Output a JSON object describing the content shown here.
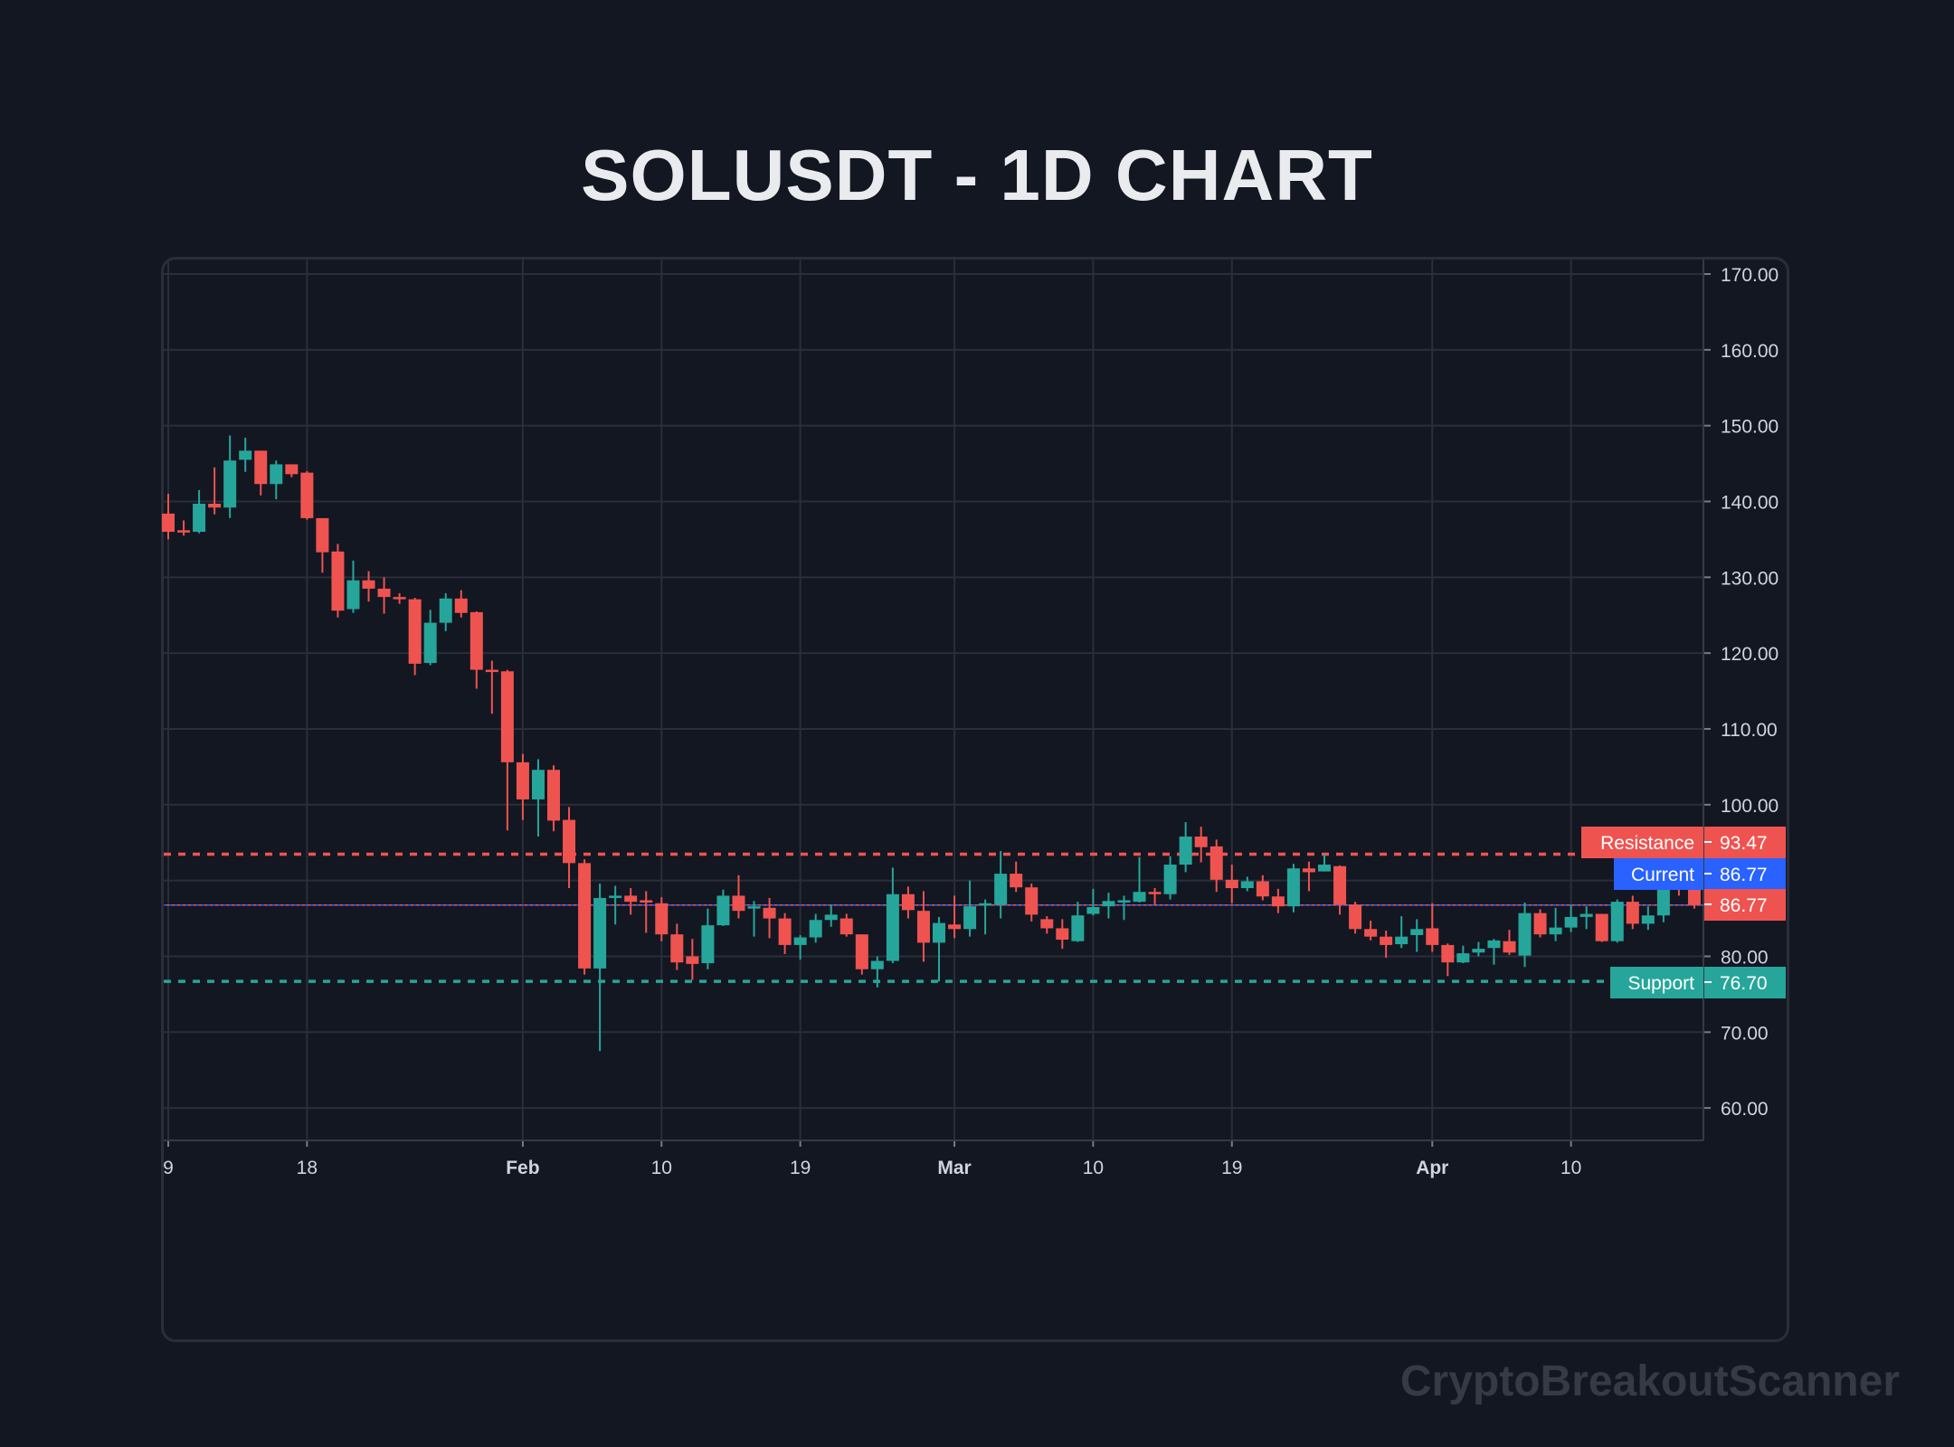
{
  "title": "SOLUSDT - 1D CHART",
  "watermark": "CryptoBreakoutScanner",
  "colors": {
    "background": "#131722",
    "grid": "#2a2e39",
    "up": "#26a69a",
    "down": "#ef5350",
    "current": "#2962ff",
    "text": "#d1d4dc"
  },
  "chart_data": {
    "type": "candlestick",
    "title": "SOLUSDT - 1D CHART",
    "ylim": [
      55.7,
      172.1
    ],
    "grid": true,
    "y_ticks": [
      "60.00",
      "70.00",
      "80.00",
      "90.00",
      "100.00",
      "110.00",
      "120.00",
      "130.00",
      "140.00",
      "150.00",
      "160.00",
      "170.00"
    ],
    "x_ticks": [
      {
        "label": "9",
        "date": "Jan 9",
        "bold": false
      },
      {
        "label": "18",
        "date": "Jan 18",
        "bold": false
      },
      {
        "label": "Feb",
        "date": "Feb 1",
        "bold": true
      },
      {
        "label": "10",
        "date": "Feb 10",
        "bold": false
      },
      {
        "label": "19",
        "date": "Feb 19",
        "bold": false
      },
      {
        "label": "Mar",
        "date": "Mar 1",
        "bold": true
      },
      {
        "label": "10",
        "date": "Mar 10",
        "bold": false
      },
      {
        "label": "19",
        "date": "Mar 19",
        "bold": false
      },
      {
        "label": "Apr",
        "date": "Apr 1",
        "bold": true
      },
      {
        "label": "10",
        "date": "Apr 10",
        "bold": false
      }
    ],
    "levels": {
      "resistance": {
        "label": "Resistance",
        "value": 93.47,
        "value_text": "93.47"
      },
      "current": {
        "label": "Current",
        "value": 86.77,
        "value_text": "86.77"
      },
      "last_price": {
        "value": 86.77,
        "value_text": "86.77"
      },
      "support": {
        "label": "Support",
        "value": 76.7,
        "value_text": "76.70"
      }
    },
    "candles_format": [
      "date",
      "open",
      "high",
      "low",
      "close"
    ],
    "candles": [
      [
        "Jan 9",
        138.4,
        141,
        135,
        136.0
      ],
      [
        "Jan 10",
        136.2,
        137.5,
        135.5,
        136.0
      ],
      [
        "Jan 11",
        136,
        141.5,
        135.8,
        139.7
      ],
      [
        "Jan 12",
        139.7,
        144.5,
        138.3,
        139.2
      ],
      [
        "Jan 13",
        139.2,
        148.7,
        137.8,
        145.4
      ],
      [
        "Jan 14",
        145.5,
        148.4,
        143.9,
        146.7
      ],
      [
        "Jan 15",
        146.7,
        146.7,
        140.8,
        142.3
      ],
      [
        "Jan 16",
        142.3,
        145.4,
        140.3,
        144.9
      ],
      [
        "Jan 17",
        144.9,
        144.9,
        143.2,
        143.6
      ],
      [
        "Jan 18",
        143.8,
        144,
        137.6,
        137.8
      ],
      [
        "Jan 19",
        137.8,
        137.8,
        130.6,
        133.3
      ],
      [
        "Jan 20",
        133.4,
        134.4,
        124.7,
        125.6
      ],
      [
        "Jan 21",
        125.8,
        132.2,
        125.3,
        129.6
      ],
      [
        "Jan 22",
        129.6,
        130.8,
        126.8,
        128.5
      ],
      [
        "Jan 23",
        128.5,
        130,
        125.2,
        127.4
      ],
      [
        "Jan 24",
        127.4,
        127.9,
        126.5,
        127.1
      ],
      [
        "Jan 25",
        127.1,
        127.3,
        117.1,
        118.6
      ],
      [
        "Jan 26",
        118.7,
        125.7,
        118.4,
        124
      ],
      [
        "Jan 27",
        124,
        127.9,
        122.9,
        127.2
      ],
      [
        "Jan 28",
        127.2,
        128.3,
        124.7,
        125.3
      ],
      [
        "Jan 29",
        125.4,
        125.5,
        115.3,
        117.8
      ],
      [
        "Jan 30",
        117.8,
        119,
        112,
        117.6
      ],
      [
        "Jan 31",
        117.6,
        117.8,
        96.6,
        105.6
      ],
      [
        "Feb 1",
        105.6,
        106.7,
        98,
        100.7
      ],
      [
        "Feb 2",
        100.7,
        106,
        95.8,
        104.6
      ],
      [
        "Feb 3",
        104.6,
        105.2,
        96.5,
        97.9
      ],
      [
        "Feb 4",
        98,
        99.7,
        89,
        92.3
      ],
      [
        "Feb 5",
        92.3,
        92.8,
        77.6,
        78.4
      ],
      [
        "Feb 6",
        78.4,
        89.6,
        67.5,
        87.7
      ],
      [
        "Feb 7",
        87.7,
        89.3,
        84.2,
        88.0
      ],
      [
        "Feb 8",
        88.0,
        89,
        85.5,
        87.2
      ],
      [
        "Feb 9",
        87.4,
        88.6,
        83.1,
        87.1
      ],
      [
        "Feb 10",
        87,
        87.8,
        82,
        82.9
      ],
      [
        "Feb 11",
        82.9,
        84.3,
        78.2,
        79.2
      ],
      [
        "Feb 12",
        80,
        82.3,
        76.9,
        79
      ],
      [
        "Feb 13",
        79.1,
        86.3,
        78.3,
        84.1
      ],
      [
        "Feb 14",
        84.1,
        88.8,
        84,
        88.0
      ],
      [
        "Feb 15",
        88.0,
        90.7,
        85,
        86
      ],
      [
        "Feb 16",
        86.3,
        87.3,
        82.6,
        86.6
      ],
      [
        "Feb 17",
        86.4,
        87.7,
        82.4,
        85
      ],
      [
        "Feb 18",
        85,
        85.7,
        80.3,
        81.5
      ],
      [
        "Feb 19",
        81.5,
        82.8,
        79.6,
        82.5
      ],
      [
        "Feb 20",
        82.5,
        85.6,
        81.8,
        84.8
      ],
      [
        "Feb 21",
        84.8,
        86.8,
        83.9,
        85.5
      ],
      [
        "Feb 22",
        85,
        85.6,
        82.6,
        82.9
      ],
      [
        "Feb 23",
        82.9,
        82.9,
        77.6,
        78.3
      ],
      [
        "Feb 24",
        78.3,
        80,
        75.9,
        79.4
      ],
      [
        "Feb 25",
        79.4,
        91.7,
        79.1,
        88.2
      ],
      [
        "Feb 26",
        88.2,
        89.2,
        85,
        86.1
      ],
      [
        "Feb 27",
        86,
        88.6,
        79.3,
        81.8
      ],
      [
        "Feb 28",
        81.8,
        85.2,
        76.7,
        84.4
      ],
      [
        "Mar 1",
        84.2,
        88,
        82.4,
        83.6
      ],
      [
        "Mar 2",
        83.6,
        90,
        82.6,
        86.6
      ],
      [
        "Mar 3",
        86.7,
        87.5,
        82.9,
        87.0
      ],
      [
        "Mar 4",
        86.8,
        93.9,
        85,
        90.9
      ],
      [
        "Mar 5",
        90.9,
        92.5,
        88.5,
        89.1
      ],
      [
        "Mar 6",
        89.1,
        89.6,
        84.6,
        85.5
      ],
      [
        "Mar 7",
        84.9,
        85.3,
        83,
        83.7
      ],
      [
        "Mar 8",
        83.7,
        84.9,
        81.0,
        82.2
      ],
      [
        "Mar 9",
        82,
        87.2,
        81.9,
        85.4
      ],
      [
        "Mar 10",
        85.6,
        88.9,
        85.4,
        86.5
      ],
      [
        "Mar 11",
        86.6,
        88.4,
        85,
        87.3
      ],
      [
        "Mar 12",
        87.1,
        88,
        84.8,
        87.4
      ],
      [
        "Mar 13",
        87.2,
        93.1,
        87.1,
        88.5
      ],
      [
        "Mar 14",
        88.5,
        89,
        86.8,
        88.2
      ],
      [
        "Mar 15",
        88.2,
        93.2,
        87.5,
        92.1
      ],
      [
        "Mar 16",
        92.1,
        97.7,
        91.1,
        95.8
      ],
      [
        "Mar 17",
        95.8,
        97.1,
        92.4,
        94.4
      ],
      [
        "Mar 18",
        94.5,
        95.4,
        88.5,
        90.1
      ],
      [
        "Mar 19",
        90.1,
        92.1,
        87,
        89.0
      ],
      [
        "Mar 20",
        89,
        90.5,
        88.6,
        89.9
      ],
      [
        "Mar 21",
        89.9,
        90.7,
        87.4,
        87.9
      ],
      [
        "Mar 22",
        87.9,
        88.9,
        85.7,
        86.6
      ],
      [
        "Mar 23",
        86.6,
        92.2,
        85.8,
        91.6
      ],
      [
        "Mar 24",
        91.6,
        92.5,
        88.6,
        91.1
      ],
      [
        "Mar 25",
        91.2,
        93.5,
        91.2,
        92.1
      ],
      [
        "Mar 26",
        91.9,
        92,
        85.5,
        86.8
      ],
      [
        "Mar 27",
        86.8,
        87.2,
        83,
        83.6
      ],
      [
        "Mar 28",
        83.6,
        84.7,
        82.1,
        82.6
      ],
      [
        "Mar 29",
        82.6,
        83.4,
        79.8,
        81.5
      ],
      [
        "Mar 30",
        81.6,
        85.3,
        81.1,
        82.6
      ],
      [
        "Mar 31",
        82.8,
        84.9,
        80.6,
        83.6
      ],
      [
        "Apr 1",
        83.7,
        87,
        80.6,
        81.5
      ],
      [
        "Apr 2",
        81.5,
        81.7,
        77.4,
        79.2
      ],
      [
        "Apr 3",
        79.2,
        81.4,
        79.1,
        80.4
      ],
      [
        "Apr 4",
        80.5,
        81.9,
        80,
        81
      ],
      [
        "Apr 5",
        81.1,
        82.3,
        78.9,
        82.1
      ],
      [
        "Apr 6",
        82,
        83.5,
        80.2,
        80.5
      ],
      [
        "Apr 7",
        80.1,
        87.1,
        78.6,
        85.7
      ],
      [
        "Apr 8",
        85.7,
        86.2,
        82.5,
        82.9
      ],
      [
        "Apr 9",
        82.9,
        86.4,
        82.0,
        83.8
      ],
      [
        "Apr 10",
        83.8,
        86.8,
        83.2,
        85.2
      ],
      [
        "Apr 11",
        85.2,
        86.6,
        83.6,
        85.6
      ],
      [
        "Apr 12",
        85.6,
        85.6,
        81.9,
        82
      ],
      [
        "Apr 13",
        82,
        87.5,
        81.8,
        87.2
      ],
      [
        "Apr 14",
        87.2,
        88,
        83.6,
        84.3
      ],
      [
        "Apr 15",
        84.3,
        86.6,
        83.5,
        85.4
      ],
      [
        "Apr 16",
        85.4,
        91.8,
        84.5,
        89.6
      ],
      [
        "Apr 17",
        89.6,
        91,
        88,
        89.5
      ],
      [
        "Apr 18",
        89.6,
        90.5,
        86.3,
        86.77
      ]
    ]
  }
}
